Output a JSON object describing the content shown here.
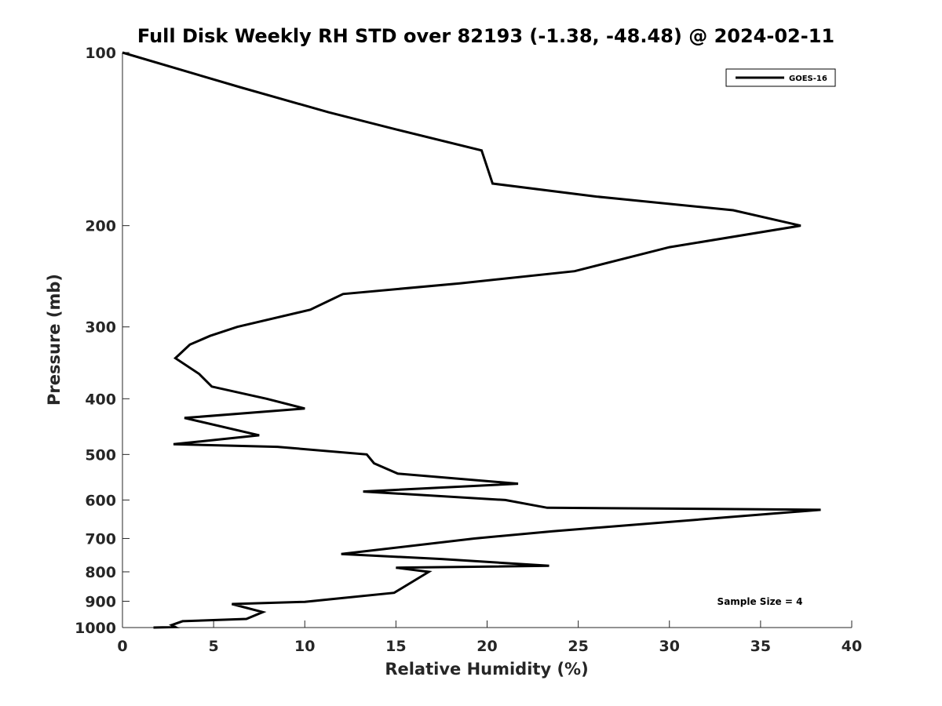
{
  "chart_data": {
    "type": "line",
    "title": "Full Disk Weekly RH STD over 82193 (-1.38, -48.48) @ 2024-02-11",
    "xlabel": "Relative Humidity (%)",
    "ylabel": "Pressure (mb)",
    "xlim": [
      0,
      40
    ],
    "ylim": [
      100,
      1000
    ],
    "yscale": "log",
    "y_reversed": true,
    "grid": false,
    "x_ticks": [
      0,
      5,
      10,
      15,
      20,
      25,
      30,
      35,
      40
    ],
    "y_ticks": [
      100,
      200,
      300,
      400,
      500,
      600,
      700,
      800,
      900,
      1000
    ],
    "legend_position": "top-right",
    "annotation": "Sample Size = 4",
    "series": [
      {
        "name": "GOES-16",
        "color": "#000000",
        "x": [
          0,
          6.5,
          11.3,
          15,
          19.7,
          20.3,
          26,
          33.5,
          37.2,
          30,
          24.8,
          18.5,
          12.1,
          10.3,
          6.3,
          4.8,
          3.7,
          2.9,
          4.2,
          4.9,
          7.9,
          10.0,
          3.4,
          7.5,
          2.8,
          8.5,
          13.4,
          13.8,
          15.1,
          21.7,
          13.2,
          21,
          23.3,
          29.5,
          38.3,
          23.6,
          19.3,
          12.0,
          17.5,
          23.4,
          15.0,
          16.8,
          14.9,
          10.0,
          6.0,
          7.7,
          6.8,
          3.3,
          2.7,
          2.9,
          1.7,
          2.1
        ],
        "y": [
          100,
          115,
          127,
          136,
          148,
          169,
          178,
          188,
          200,
          218,
          240,
          252,
          263,
          280,
          300,
          311,
          322,
          340,
          362,
          381,
          400,
          416,
          432,
          463,
          480,
          485,
          500,
          518,
          540,
          562,
          580,
          600,
          619,
          621,
          624,
          680,
          700,
          745,
          760,
          781,
          787,
          800,
          870,
          902,
          910,
          940,
          966,
          975,
          990,
          998,
          1000,
          1000
        ]
      }
    ]
  }
}
